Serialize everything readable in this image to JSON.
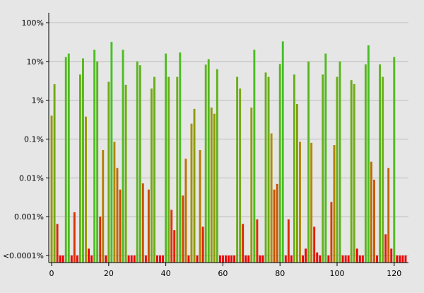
{
  "chart_data": {
    "type": "bar",
    "title": "",
    "xlabel": "",
    "ylabel": "",
    "yscale": "log",
    "xlim": [
      -1,
      125
    ],
    "ylim": [
      0.0001,
      100
    ],
    "grid": true,
    "legend": "none",
    "colors": {
      "background": "#e6e6e6",
      "axis": "#000000",
      "grid": "#bdbdbd",
      "low": "#ee0000",
      "mid": "#b08a00",
      "high": "#2ecc2e"
    },
    "x_ticks": [
      0,
      20,
      40,
      60,
      80,
      100,
      120
    ],
    "x_tick_labels": [
      "0",
      "20",
      "40",
      "60",
      "80",
      "100",
      "120"
    ],
    "y_ticks": [
      0.0001,
      0.001,
      0.01,
      0.1,
      1,
      10,
      100
    ],
    "y_tick_labels": [
      "<0.0001%",
      "0.001%",
      "0.01%",
      "0.1%",
      "1%",
      "10%",
      "100%"
    ],
    "x": [
      0,
      1,
      2,
      3,
      4,
      5,
      6,
      7,
      8,
      9,
      10,
      11,
      12,
      13,
      14,
      15,
      16,
      17,
      18,
      19,
      20,
      21,
      22,
      23,
      24,
      25,
      26,
      27,
      28,
      29,
      30,
      31,
      32,
      33,
      34,
      35,
      36,
      37,
      38,
      39,
      40,
      41,
      42,
      43,
      44,
      45,
      46,
      47,
      48,
      49,
      50,
      51,
      52,
      53,
      54,
      55,
      56,
      57,
      58,
      59,
      60,
      61,
      62,
      63,
      64,
      65,
      66,
      67,
      68,
      69,
      70,
      71,
      72,
      73,
      74,
      75,
      76,
      77,
      78,
      79,
      80,
      81,
      82,
      83,
      84,
      85,
      86,
      87,
      88,
      89,
      90,
      91,
      92,
      93,
      94,
      95,
      96,
      97,
      98,
      99,
      100,
      101,
      102,
      103,
      104,
      105,
      106,
      107,
      108,
      109,
      110,
      111,
      112,
      113,
      114,
      115,
      116,
      117,
      118,
      119,
      120,
      121,
      122,
      123,
      124
    ],
    "values": [
      0.4,
      2.6,
      0.00065,
      0.0001,
      0.0001,
      13,
      16,
      0.0001,
      0.0013,
      0.0001,
      4.6,
      12,
      0.38,
      0.00015,
      0.0001,
      20,
      10,
      0.001,
      0.052,
      0.0001,
      3,
      32,
      0.085,
      0.018,
      0.005,
      20,
      2.5,
      0.0001,
      0.0001,
      0.0001,
      10,
      8,
      0.0072,
      0.0001,
      0.005,
      2,
      4,
      0.0001,
      0.0001,
      0.0001,
      16,
      4,
      0.0015,
      0.00045,
      4,
      17,
      0.0035,
      0.031,
      0.0001,
      0.25,
      0.6,
      0.0001,
      0.052,
      0.00055,
      8.3,
      11.5,
      0.65,
      0.45,
      6.3,
      0.0001,
      0.0001,
      0.0001,
      0.0001,
      0.0001,
      0.0001,
      4,
      2,
      0.00065,
      0.0001,
      0.0001,
      0.65,
      20,
      0.00085,
      0.0001,
      0.0001,
      5.2,
      4,
      0.14,
      0.005,
      0.007,
      8.6,
      33,
      0.0001,
      0.00085,
      0.0001,
      4.6,
      0.8,
      0.085,
      0.0001,
      0.00015,
      10,
      0.08,
      0.00055,
      0.00012,
      0.0001,
      4.6,
      16,
      0.0001,
      0.0024,
      0.07,
      4,
      10,
      0.0001,
      0.0001,
      0.0001,
      3.3,
      2.6,
      0.00015,
      0.0001,
      0.0001,
      8.4,
      26,
      0.026,
      0.009,
      0.0001,
      8.4,
      4,
      0.00035,
      0.018,
      0.00015,
      13,
      0.0001,
      0.0001,
      0.0001,
      0.0001
    ]
  }
}
